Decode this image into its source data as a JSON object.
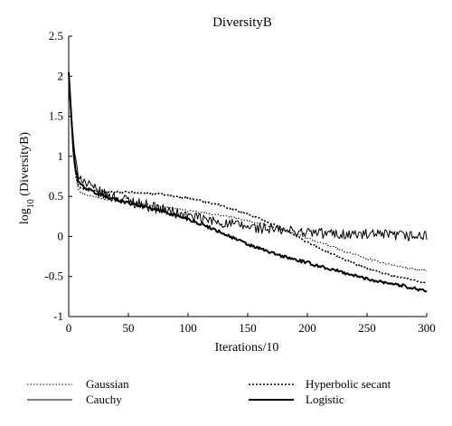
{
  "chart_data": {
    "type": "line",
    "title": "DiversityB",
    "xlabel": "Iterations/10",
    "ylabel_main": "log",
    "ylabel_sub": "10",
    "ylabel_rest": " (DiversityB)",
    "xlim": [
      0,
      300
    ],
    "ylim": [
      -1,
      2.5
    ],
    "x_ticks": [
      0,
      50,
      100,
      150,
      200,
      250,
      300
    ],
    "y_ticks": [
      -1,
      -0.5,
      0,
      0.5,
      1,
      1.5,
      2,
      2.5
    ],
    "grid": false,
    "legend_position": "bottom",
    "series": [
      {
        "name": "Gaussian",
        "style": "dotted-thin",
        "noise": 0.012,
        "x": [
          0,
          2,
          4,
          6,
          8,
          10,
          15,
          20,
          30,
          50,
          75,
          100,
          125,
          150,
          175,
          200,
          225,
          250,
          275,
          300
        ],
        "y": [
          2.05,
          1.5,
          1.0,
          0.75,
          0.6,
          0.55,
          0.52,
          0.5,
          0.47,
          0.43,
          0.38,
          0.32,
          0.27,
          0.2,
          0.1,
          -0.02,
          -0.15,
          -0.28,
          -0.37,
          -0.43
        ]
      },
      {
        "name": "Hyperbolic secant",
        "style": "dotted-thick",
        "noise": 0.012,
        "x": [
          0,
          2,
          4,
          6,
          8,
          10,
          15,
          20,
          30,
          50,
          75,
          100,
          125,
          150,
          175,
          200,
          225,
          250,
          275,
          300
        ],
        "y": [
          2.05,
          1.5,
          1.05,
          0.8,
          0.65,
          0.6,
          0.58,
          0.57,
          0.56,
          0.55,
          0.53,
          0.48,
          0.4,
          0.28,
          0.13,
          -0.07,
          -0.25,
          -0.4,
          -0.5,
          -0.58
        ]
      },
      {
        "name": "Cauchy",
        "style": "solid-thin",
        "noise": 0.07,
        "x": [
          0,
          2,
          4,
          6,
          8,
          10,
          15,
          20,
          30,
          50,
          75,
          100,
          125,
          150,
          175,
          200,
          225,
          250,
          275,
          300
        ],
        "y": [
          2.05,
          1.6,
          1.15,
          0.9,
          0.8,
          0.75,
          0.65,
          0.6,
          0.52,
          0.45,
          0.35,
          0.25,
          0.18,
          0.12,
          0.08,
          0.05,
          0.03,
          0.02,
          0.01,
          0.0
        ]
      },
      {
        "name": "Logistic",
        "style": "solid-thick",
        "noise": 0.02,
        "x": [
          0,
          2,
          4,
          6,
          8,
          10,
          15,
          20,
          30,
          50,
          75,
          100,
          125,
          150,
          175,
          200,
          225,
          250,
          275,
          300
        ],
        "y": [
          2.05,
          1.55,
          1.05,
          0.8,
          0.7,
          0.65,
          0.6,
          0.56,
          0.5,
          0.42,
          0.33,
          0.22,
          0.07,
          -0.1,
          -0.23,
          -0.33,
          -0.43,
          -0.53,
          -0.6,
          -0.68
        ]
      }
    ]
  }
}
